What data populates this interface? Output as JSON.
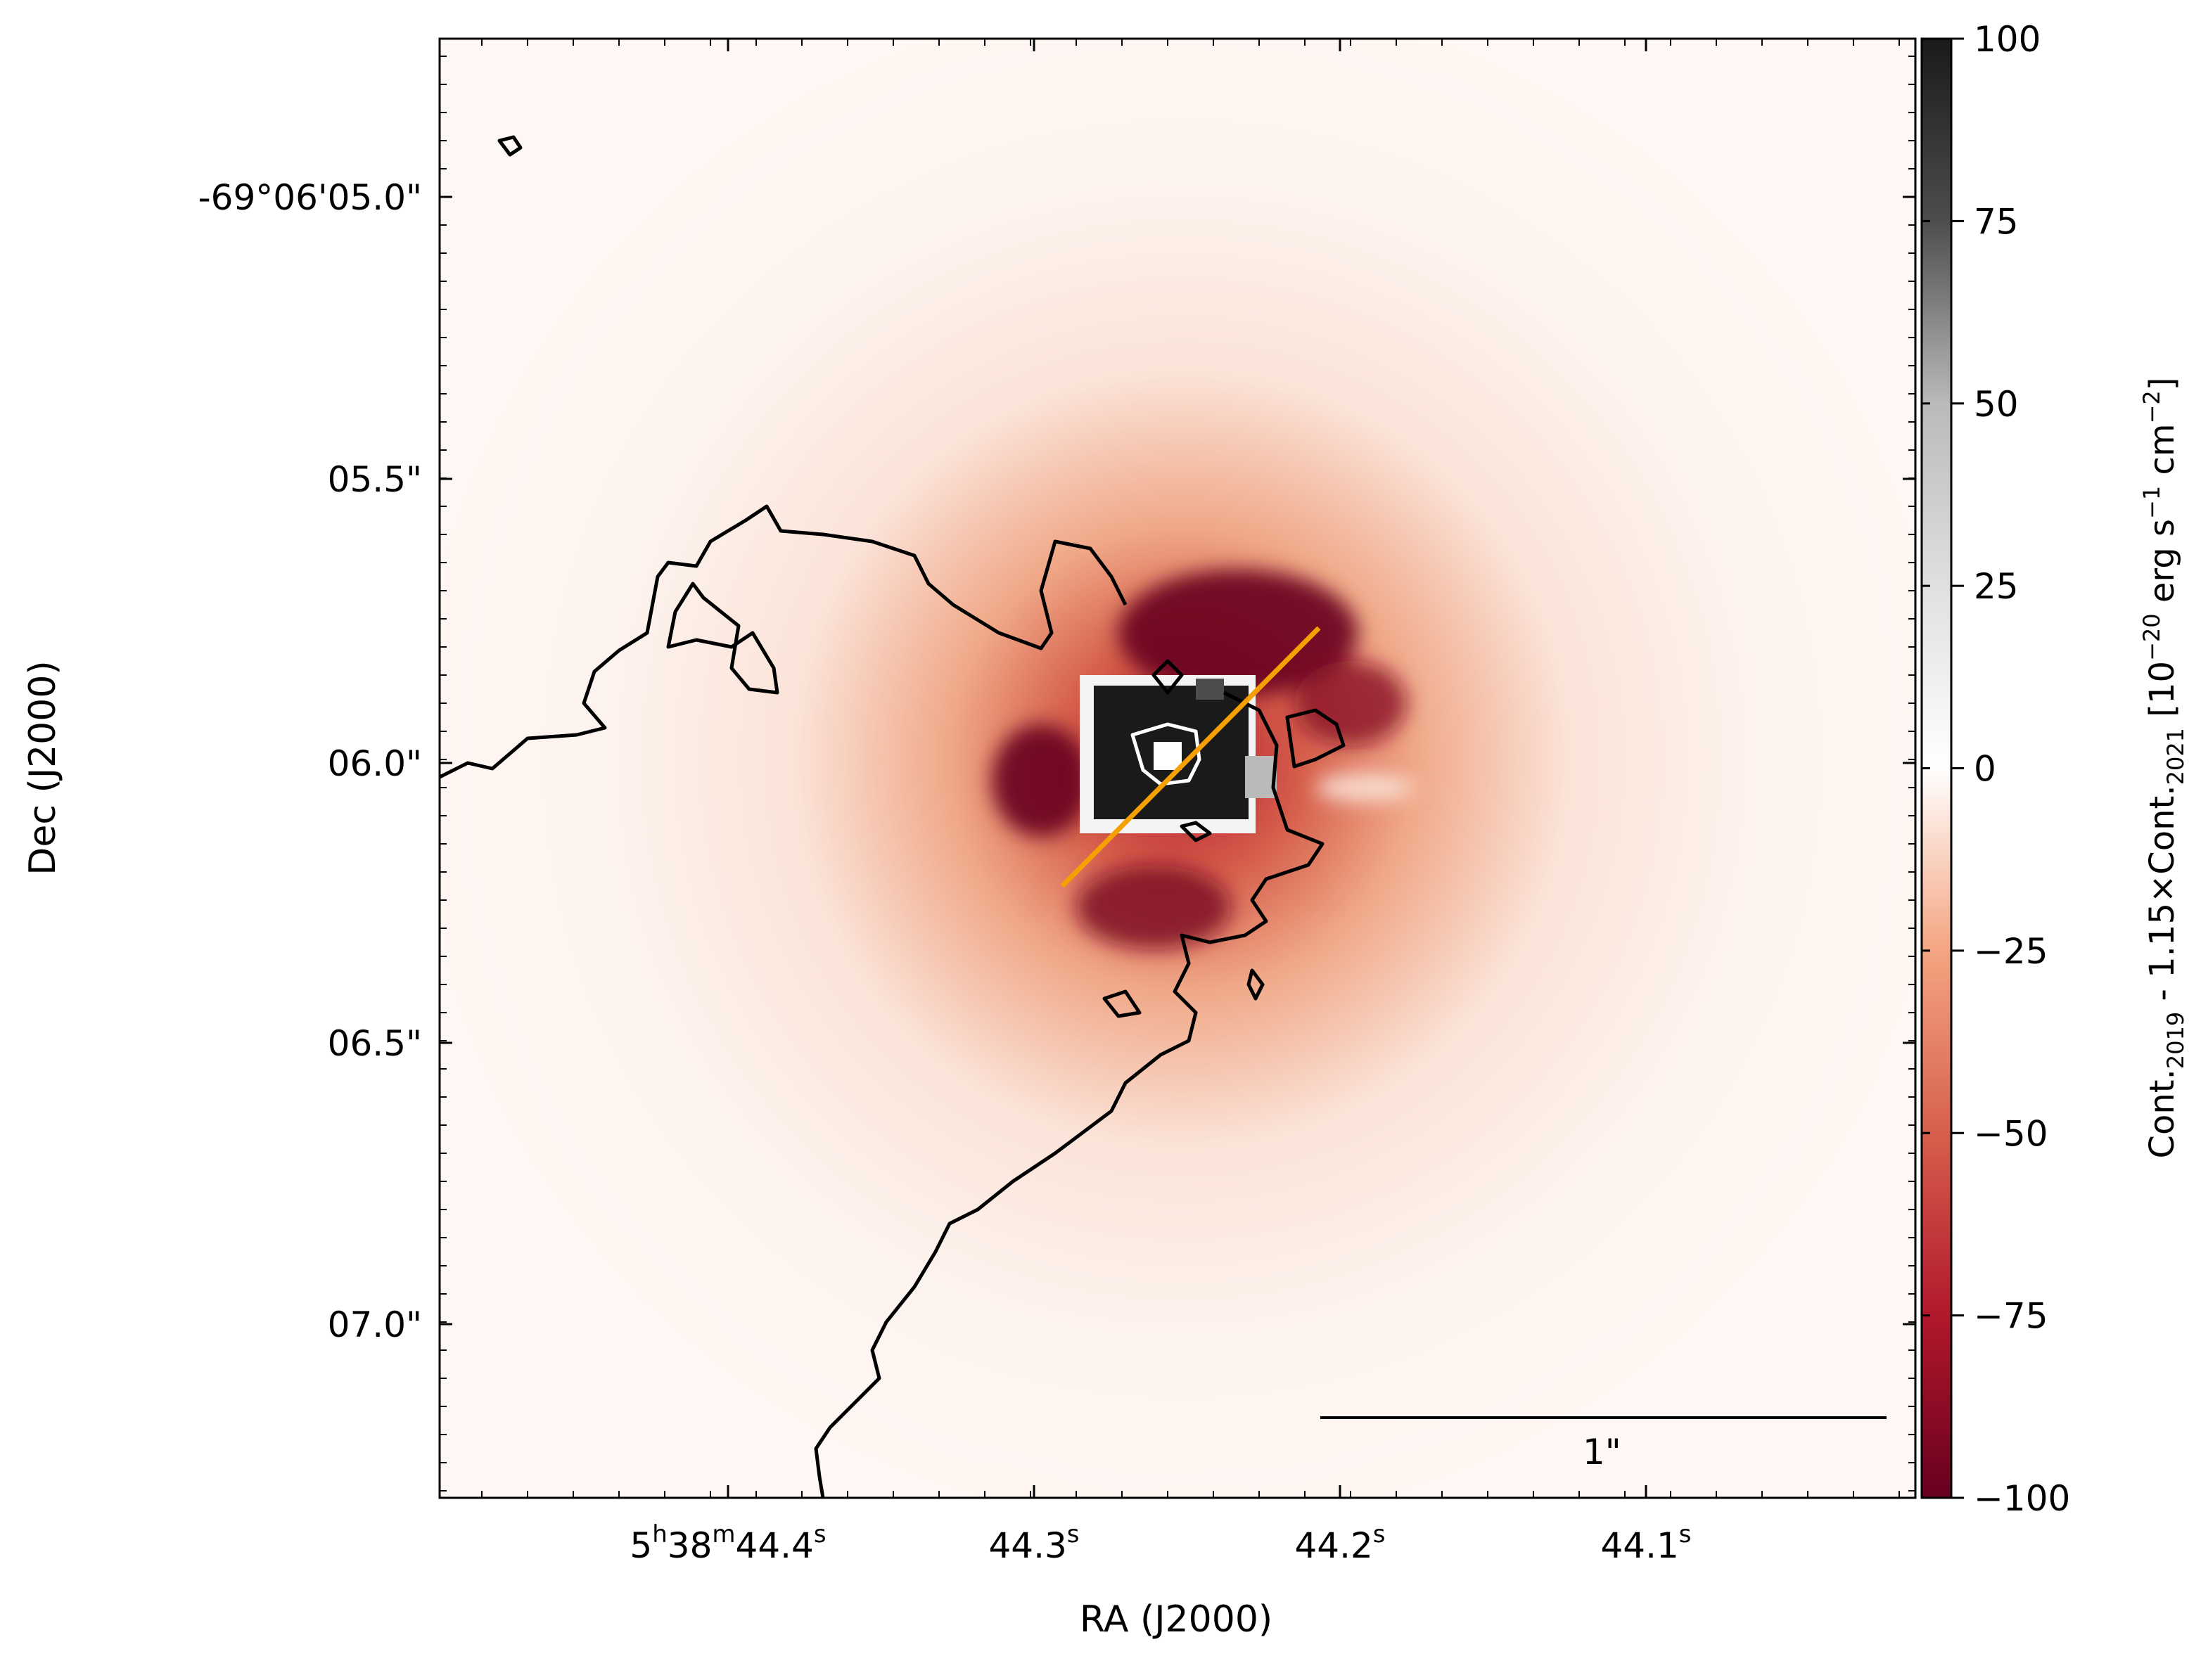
{
  "chart_data": {
    "type": "heatmap",
    "xlabel": "RA (J2000)",
    "ylabel": "Dec (J2000)",
    "x_ticks": [
      {
        "pre": "5",
        "sup1": "h",
        "mid": "38",
        "sup2": "m",
        "main": "44.4",
        "sup3": "s"
      },
      {
        "main": "44.3",
        "sup3": "s"
      },
      {
        "main": "44.2",
        "sup3": "s"
      },
      {
        "main": "44.1",
        "sup3": "s"
      }
    ],
    "y_ticks": [
      "-69°06'05.0\"",
      "05.5\"",
      "06.0\"",
      "06.5\"",
      "07.0\""
    ],
    "colorbar": {
      "colormap": "RdGy_r",
      "range": [
        -100,
        100
      ],
      "ticks": [
        "100",
        "75",
        "50",
        "25",
        "0",
        "−25",
        "−50",
        "−75",
        "−100"
      ],
      "tick_values": [
        100,
        75,
        50,
        25,
        0,
        -25,
        -50,
        -75,
        -100
      ],
      "label_main_a": "Cont.",
      "label_sub_a": "2019",
      "label_main_b": " - 1.15×Cont.",
      "label_sub_b": "2021",
      "label_units_a": "   [10",
      "label_units_sup_a": "−20",
      "label_units_b": " erg s",
      "label_units_sup_b": "−1",
      "label_units_c": " cm",
      "label_units_sup_c": "−2",
      "label_units_d": "]"
    },
    "scale_bar": {
      "label": "1\""
    },
    "overlays": {
      "contour_colors": {
        "outer": "#000000",
        "inner": "#ffffff"
      },
      "slit_color": "#f5a000"
    }
  }
}
